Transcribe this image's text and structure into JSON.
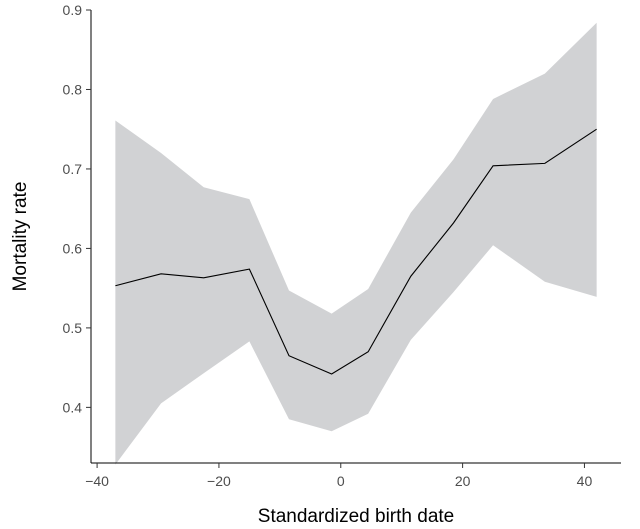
{
  "chart_data": {
    "type": "line",
    "title": "",
    "xlabel": "Standardized birth date",
    "ylabel": "Mortality rate",
    "xlim": [
      -41,
      46
    ],
    "ylim": [
      0.33,
      0.9
    ],
    "x_ticks": [
      -40,
      -20,
      0,
      20,
      40
    ],
    "x_tick_labels": [
      "−40",
      "−20",
      "0",
      "20",
      "40"
    ],
    "y_ticks": [
      0.4,
      0.5,
      0.6,
      0.7,
      0.8,
      0.9
    ],
    "y_tick_labels": [
      "0.4",
      "0.5",
      "0.6",
      "0.7",
      "0.8",
      "0.9"
    ],
    "grid": false,
    "series": [
      {
        "x": [
          -37,
          -29.5,
          -22.5,
          -15,
          -8.5,
          -1.5,
          4.5,
          11.5,
          18.5,
          25,
          33.5,
          42
        ],
        "values": [
          0.553,
          0.568,
          0.563,
          0.574,
          0.465,
          0.442,
          0.47,
          0.565,
          0.632,
          0.704,
          0.707,
          0.75
        ],
        "lower": [
          0.328,
          0.405,
          0.443,
          0.483,
          0.385,
          0.37,
          0.392,
          0.485,
          0.545,
          0.604,
          0.558,
          0.539
        ],
        "upper": [
          0.761,
          0.72,
          0.677,
          0.662,
          0.547,
          0.518,
          0.549,
          0.645,
          0.712,
          0.788,
          0.82,
          0.884
        ]
      }
    ],
    "colors": {
      "band": "#d1d2d4",
      "line": "#000000",
      "axis": "#000000",
      "tick_text": "#4d4d4d"
    }
  }
}
